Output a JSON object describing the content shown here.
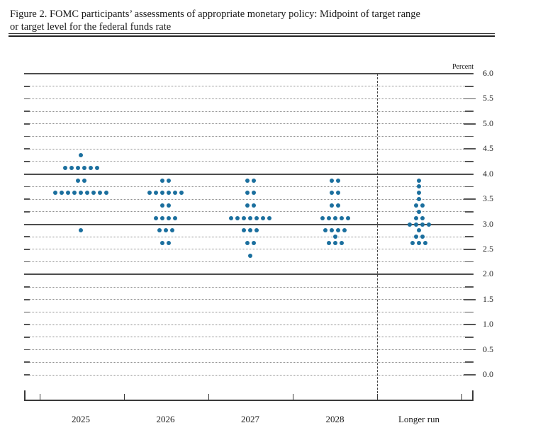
{
  "figure": {
    "title_line1": "Figure 2. FOMC participants’ assessments of appropriate monetary policy: Midpoint of target range",
    "title_line2": "or target level for the federal funds rate"
  },
  "chart_data": {
    "type": "scatter",
    "subtype": "fomc-dot-plot",
    "unit_label": "Percent",
    "ylim": [
      0.0,
      6.0
    ],
    "grid_step": 0.25,
    "label_step": 0.5,
    "y_tick_labels": [
      "6.0",
      "5.5",
      "5.0",
      "4.5",
      "4.0",
      "3.5",
      "3.0",
      "2.5",
      "2.0",
      "1.5",
      "1.0",
      "0.5",
      "0.0"
    ],
    "solid_line_values": [
      6.0,
      4.0,
      3.0,
      2.0
    ],
    "grid_on": true,
    "legend": "none",
    "dot_color": "#1b6f9e",
    "categories": [
      "2025",
      "2026",
      "2027",
      "2028",
      "Longer run"
    ],
    "separator_before_category": "Longer run",
    "series": [
      {
        "category": "2025",
        "dots": [
          {
            "rate": 4.375,
            "count": 1
          },
          {
            "rate": 4.125,
            "count": 6
          },
          {
            "rate": 3.875,
            "count": 2
          },
          {
            "rate": 3.625,
            "count": 9
          },
          {
            "rate": 2.875,
            "count": 1
          }
        ]
      },
      {
        "category": "2026",
        "dots": [
          {
            "rate": 3.875,
            "count": 2
          },
          {
            "rate": 3.625,
            "count": 6
          },
          {
            "rate": 3.375,
            "count": 2
          },
          {
            "rate": 3.125,
            "count": 4
          },
          {
            "rate": 2.875,
            "count": 3
          },
          {
            "rate": 2.625,
            "count": 2
          }
        ]
      },
      {
        "category": "2027",
        "dots": [
          {
            "rate": 3.875,
            "count": 2
          },
          {
            "rate": 3.625,
            "count": 2
          },
          {
            "rate": 3.375,
            "count": 2
          },
          {
            "rate": 3.125,
            "count": 7
          },
          {
            "rate": 2.875,
            "count": 3
          },
          {
            "rate": 2.625,
            "count": 2
          },
          {
            "rate": 2.375,
            "count": 1
          }
        ]
      },
      {
        "category": "2028",
        "dots": [
          {
            "rate": 3.875,
            "count": 2
          },
          {
            "rate": 3.625,
            "count": 2
          },
          {
            "rate": 3.375,
            "count": 2
          },
          {
            "rate": 3.125,
            "count": 5
          },
          {
            "rate": 2.875,
            "count": 4
          },
          {
            "rate": 2.75,
            "count": 1
          },
          {
            "rate": 2.625,
            "count": 3
          }
        ]
      },
      {
        "category": "Longer run",
        "dots": [
          {
            "rate": 3.875,
            "count": 1
          },
          {
            "rate": 3.75,
            "count": 1
          },
          {
            "rate": 3.625,
            "count": 1
          },
          {
            "rate": 3.5,
            "count": 1
          },
          {
            "rate": 3.375,
            "count": 2
          },
          {
            "rate": 3.25,
            "count": 1
          },
          {
            "rate": 3.125,
            "count": 2
          },
          {
            "rate": 3.0,
            "count": 4
          },
          {
            "rate": 2.875,
            "count": 1
          },
          {
            "rate": 2.75,
            "count": 2
          },
          {
            "rate": 2.625,
            "count": 3
          }
        ]
      }
    ]
  }
}
